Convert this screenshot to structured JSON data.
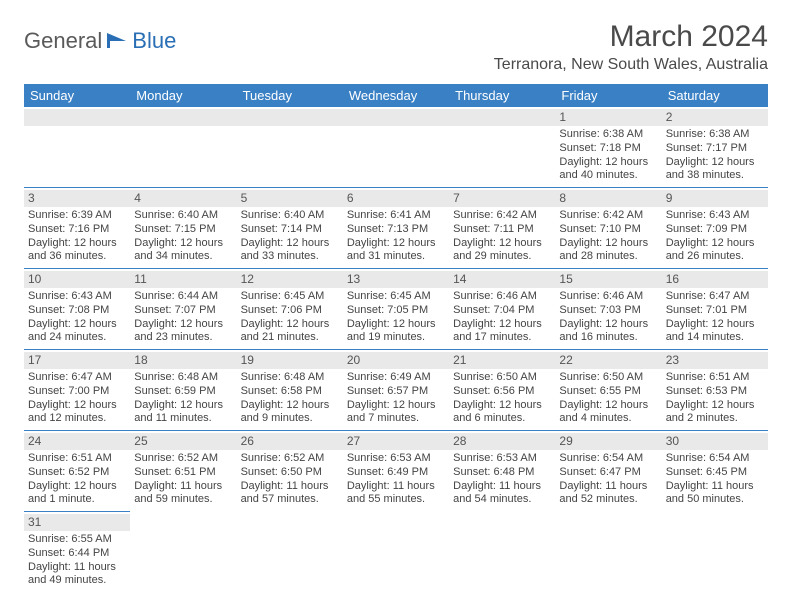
{
  "logo": {
    "part1": "General",
    "part2": "Blue"
  },
  "title": "March 2024",
  "location": "Terranora, New South Wales, Australia",
  "colors": {
    "header_bg": "#3a80c4",
    "header_text": "#ffffff",
    "row_divider": "#3a80c4",
    "daynum_bg": "#e9e9e9",
    "text": "#444444",
    "logo_blue": "#2a6fb5"
  },
  "weekdays": [
    "Sunday",
    "Monday",
    "Tuesday",
    "Wednesday",
    "Thursday",
    "Friday",
    "Saturday"
  ],
  "weeks": [
    [
      null,
      null,
      null,
      null,
      null,
      {
        "n": "1",
        "sr": "Sunrise: 6:38 AM",
        "ss": "Sunset: 7:18 PM",
        "dl": "Daylight: 12 hours and 40 minutes."
      },
      {
        "n": "2",
        "sr": "Sunrise: 6:38 AM",
        "ss": "Sunset: 7:17 PM",
        "dl": "Daylight: 12 hours and 38 minutes."
      }
    ],
    [
      {
        "n": "3",
        "sr": "Sunrise: 6:39 AM",
        "ss": "Sunset: 7:16 PM",
        "dl": "Daylight: 12 hours and 36 minutes."
      },
      {
        "n": "4",
        "sr": "Sunrise: 6:40 AM",
        "ss": "Sunset: 7:15 PM",
        "dl": "Daylight: 12 hours and 34 minutes."
      },
      {
        "n": "5",
        "sr": "Sunrise: 6:40 AM",
        "ss": "Sunset: 7:14 PM",
        "dl": "Daylight: 12 hours and 33 minutes."
      },
      {
        "n": "6",
        "sr": "Sunrise: 6:41 AM",
        "ss": "Sunset: 7:13 PM",
        "dl": "Daylight: 12 hours and 31 minutes."
      },
      {
        "n": "7",
        "sr": "Sunrise: 6:42 AM",
        "ss": "Sunset: 7:11 PM",
        "dl": "Daylight: 12 hours and 29 minutes."
      },
      {
        "n": "8",
        "sr": "Sunrise: 6:42 AM",
        "ss": "Sunset: 7:10 PM",
        "dl": "Daylight: 12 hours and 28 minutes."
      },
      {
        "n": "9",
        "sr": "Sunrise: 6:43 AM",
        "ss": "Sunset: 7:09 PM",
        "dl": "Daylight: 12 hours and 26 minutes."
      }
    ],
    [
      {
        "n": "10",
        "sr": "Sunrise: 6:43 AM",
        "ss": "Sunset: 7:08 PM",
        "dl": "Daylight: 12 hours and 24 minutes."
      },
      {
        "n": "11",
        "sr": "Sunrise: 6:44 AM",
        "ss": "Sunset: 7:07 PM",
        "dl": "Daylight: 12 hours and 23 minutes."
      },
      {
        "n": "12",
        "sr": "Sunrise: 6:45 AM",
        "ss": "Sunset: 7:06 PM",
        "dl": "Daylight: 12 hours and 21 minutes."
      },
      {
        "n": "13",
        "sr": "Sunrise: 6:45 AM",
        "ss": "Sunset: 7:05 PM",
        "dl": "Daylight: 12 hours and 19 minutes."
      },
      {
        "n": "14",
        "sr": "Sunrise: 6:46 AM",
        "ss": "Sunset: 7:04 PM",
        "dl": "Daylight: 12 hours and 17 minutes."
      },
      {
        "n": "15",
        "sr": "Sunrise: 6:46 AM",
        "ss": "Sunset: 7:03 PM",
        "dl": "Daylight: 12 hours and 16 minutes."
      },
      {
        "n": "16",
        "sr": "Sunrise: 6:47 AM",
        "ss": "Sunset: 7:01 PM",
        "dl": "Daylight: 12 hours and 14 minutes."
      }
    ],
    [
      {
        "n": "17",
        "sr": "Sunrise: 6:47 AM",
        "ss": "Sunset: 7:00 PM",
        "dl": "Daylight: 12 hours and 12 minutes."
      },
      {
        "n": "18",
        "sr": "Sunrise: 6:48 AM",
        "ss": "Sunset: 6:59 PM",
        "dl": "Daylight: 12 hours and 11 minutes."
      },
      {
        "n": "19",
        "sr": "Sunrise: 6:48 AM",
        "ss": "Sunset: 6:58 PM",
        "dl": "Daylight: 12 hours and 9 minutes."
      },
      {
        "n": "20",
        "sr": "Sunrise: 6:49 AM",
        "ss": "Sunset: 6:57 PM",
        "dl": "Daylight: 12 hours and 7 minutes."
      },
      {
        "n": "21",
        "sr": "Sunrise: 6:50 AM",
        "ss": "Sunset: 6:56 PM",
        "dl": "Daylight: 12 hours and 6 minutes."
      },
      {
        "n": "22",
        "sr": "Sunrise: 6:50 AM",
        "ss": "Sunset: 6:55 PM",
        "dl": "Daylight: 12 hours and 4 minutes."
      },
      {
        "n": "23",
        "sr": "Sunrise: 6:51 AM",
        "ss": "Sunset: 6:53 PM",
        "dl": "Daylight: 12 hours and 2 minutes."
      }
    ],
    [
      {
        "n": "24",
        "sr": "Sunrise: 6:51 AM",
        "ss": "Sunset: 6:52 PM",
        "dl": "Daylight: 12 hours and 1 minute."
      },
      {
        "n": "25",
        "sr": "Sunrise: 6:52 AM",
        "ss": "Sunset: 6:51 PM",
        "dl": "Daylight: 11 hours and 59 minutes."
      },
      {
        "n": "26",
        "sr": "Sunrise: 6:52 AM",
        "ss": "Sunset: 6:50 PM",
        "dl": "Daylight: 11 hours and 57 minutes."
      },
      {
        "n": "27",
        "sr": "Sunrise: 6:53 AM",
        "ss": "Sunset: 6:49 PM",
        "dl": "Daylight: 11 hours and 55 minutes."
      },
      {
        "n": "28",
        "sr": "Sunrise: 6:53 AM",
        "ss": "Sunset: 6:48 PM",
        "dl": "Daylight: 11 hours and 54 minutes."
      },
      {
        "n": "29",
        "sr": "Sunrise: 6:54 AM",
        "ss": "Sunset: 6:47 PM",
        "dl": "Daylight: 11 hours and 52 minutes."
      },
      {
        "n": "30",
        "sr": "Sunrise: 6:54 AM",
        "ss": "Sunset: 6:45 PM",
        "dl": "Daylight: 11 hours and 50 minutes."
      }
    ],
    [
      {
        "n": "31",
        "sr": "Sunrise: 6:55 AM",
        "ss": "Sunset: 6:44 PM",
        "dl": "Daylight: 11 hours and 49 minutes."
      },
      null,
      null,
      null,
      null,
      null,
      null
    ]
  ]
}
